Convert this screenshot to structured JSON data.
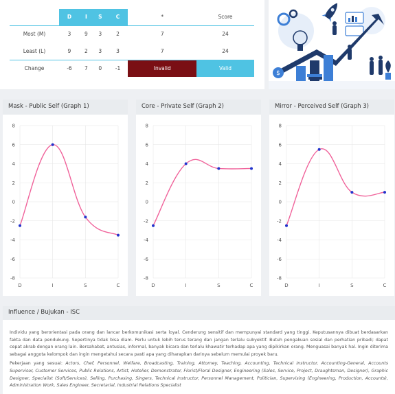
{
  "table": {
    "headers": [
      "",
      "D",
      "I",
      "S",
      "C",
      "*",
      "Score"
    ],
    "rows": [
      {
        "label": "Most (M)",
        "values": [
          "3",
          "9",
          "3",
          "2",
          "7",
          "24"
        ]
      },
      {
        "label": "Least (L)",
        "values": [
          "9",
          "2",
          "3",
          "3",
          "7",
          "24"
        ]
      },
      {
        "label": "Change",
        "values": [
          "-6",
          "7",
          "0",
          "-1",
          "Invalid",
          "Valid"
        ]
      }
    ]
  },
  "graphs": [
    {
      "title": "Mask - Public Self (Graph 1)"
    },
    {
      "title": "Core - Private Self (Graph 2)"
    },
    {
      "title": "Mirror - Perceived Self (Graph 3)"
    }
  ],
  "chart_data": [
    {
      "type": "line",
      "title": "Mask - Public Self (Graph 1)",
      "categories": [
        "D",
        "I",
        "S",
        "C"
      ],
      "series": [
        {
          "values": [
            -2.5,
            6,
            -1.6,
            -3.5
          ]
        }
      ],
      "ylim": [
        -8,
        8
      ],
      "yticks": [
        "8",
        "6",
        "4",
        "2",
        "0",
        "-2",
        "-4",
        "-6",
        "-8"
      ],
      "grid": true,
      "color": "#f0629a"
    },
    {
      "type": "line",
      "title": "Core - Private Self (Graph 2)",
      "categories": [
        "D",
        "I",
        "S",
        "C"
      ],
      "series": [
        {
          "values": [
            -2.5,
            4,
            3.5,
            3.5
          ]
        }
      ],
      "ylim": [
        -8,
        8
      ],
      "yticks": [
        "8",
        "6",
        "4",
        "2",
        "0",
        "-2",
        "-4",
        "-6",
        "-8"
      ],
      "grid": true,
      "color": "#f0629a"
    },
    {
      "type": "line",
      "title": "Mirror - Perceived Self (Graph 3)",
      "categories": [
        "D",
        "I",
        "S",
        "C"
      ],
      "series": [
        {
          "values": [
            -2.5,
            5.5,
            1,
            1
          ]
        }
      ],
      "ylim": [
        -8,
        8
      ],
      "yticks": [
        "8",
        "6",
        "4",
        "2",
        "0",
        "-2",
        "-4",
        "-6",
        "-8"
      ],
      "grid": true,
      "color": "#f0629a"
    }
  ],
  "info": {
    "title": "Influence / Bujukan - ISC",
    "description": "Individu yang berorientasi pada orang dan lancar berkomunikasi serta loyal. Cenderung sensitif dan mempunyai standard yang tinggi. Keputusannya dibuat berdasarkan fakta dan data pendukung. Sepertinya tidak bisa diam. Perlu untuk lebih terus terang dan jangan terlalu subyektif. Butuh pengakuan sosial dan perhatian pribadi; dapat cepat akrab dengan orang lain. Bersahabat, antusias, informal, banyak bicara dan terlalu khawatir terhadap apa yang dipikirkan orang. Menguasai banyak hal. Ingin diterima sebagai anggota kelompok dan ingin mengetahui secara pasti apa yang diharapkan darinya sebelum memulai proyek baru.",
    "jobs_label": "Pekerjaan yang sesuai:",
    "jobs": "Actors, Chef, Personnel, Welfare, Broadcasting, Training, Attorney, Teaching, Accounting, Technical Instructor, Accounting-General, Accounts Supervisor, Customer Services, Public Relations, Artist, Hotelier, Demonstrator, Florist/Floral Designer, Engineering (Sales, Service, Project, Draughtsman, Designer), Graphic Designer, Specialist (Soft/Services), Selling, Purchasing, Singers, Technical Instructor, Personnel Management, Politician, Supervising (Engineering, Production, Accounts), Administration Work, Sales Engineer, Secretarial, Industrial Relations Specialist"
  },
  "illustration": {
    "icon": "business-growth-illustration",
    "colors": {
      "navy": "#1f3a6b",
      "blue": "#3d7fd6",
      "light": "#dfe9f7"
    }
  }
}
